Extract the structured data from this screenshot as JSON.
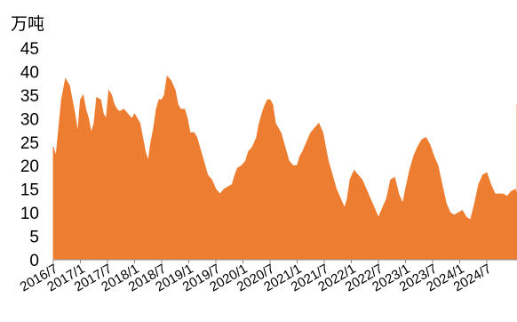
{
  "chart_data": {
    "type": "area",
    "unit_label": "万吨",
    "color": "#ED7D31",
    "ylim": [
      0,
      45
    ],
    "y_ticks": [
      0,
      5,
      10,
      15,
      20,
      25,
      30,
      35,
      40,
      45
    ],
    "x_tick_labels": [
      "2016/7",
      "2017/1",
      "2017/7",
      "2018/1",
      "2018/7",
      "2019/1",
      "2019/7",
      "2020/1",
      "2020/7",
      "2021/1",
      "2021/7",
      "2022/1",
      "2022/7",
      "2023/1",
      "2023/7",
      "2024/1",
      "2024/7"
    ],
    "x_start": "2016/7",
    "x_end": "2024/12",
    "series": [
      {
        "values": [
          [
            0.0,
            24
          ],
          [
            0.1,
            22
          ],
          [
            0.2,
            28
          ],
          [
            0.3,
            34
          ],
          [
            0.45,
            38.5
          ],
          [
            0.6,
            37
          ],
          [
            0.7,
            34
          ],
          [
            0.8,
            31
          ],
          [
            0.9,
            27
          ],
          [
            1.0,
            34
          ],
          [
            1.1,
            35
          ],
          [
            1.2,
            32
          ],
          [
            1.3,
            30
          ],
          [
            1.4,
            27
          ],
          [
            1.5,
            29
          ],
          [
            1.6,
            34.5
          ],
          [
            1.75,
            34
          ],
          [
            1.85,
            31
          ],
          [
            1.95,
            30
          ],
          [
            2.05,
            36
          ],
          [
            2.15,
            35
          ],
          [
            2.25,
            33
          ],
          [
            2.35,
            32
          ],
          [
            2.45,
            31.5
          ],
          [
            2.6,
            32
          ],
          [
            2.75,
            31
          ],
          [
            2.9,
            30
          ],
          [
            3.0,
            31
          ],
          [
            3.1,
            30
          ],
          [
            3.2,
            29
          ],
          [
            3.3,
            26
          ],
          [
            3.4,
            23
          ],
          [
            3.5,
            21
          ],
          [
            3.6,
            25
          ],
          [
            3.7,
            28
          ],
          [
            3.8,
            32
          ],
          [
            3.9,
            34
          ],
          [
            4.0,
            34
          ],
          [
            4.1,
            35
          ],
          [
            4.2,
            39
          ],
          [
            4.35,
            38
          ],
          [
            4.5,
            36
          ],
          [
            4.6,
            33
          ],
          [
            4.7,
            32
          ],
          [
            4.85,
            32
          ],
          [
            4.95,
            30
          ],
          [
            5.05,
            27
          ],
          [
            5.2,
            27
          ],
          [
            5.3,
            26
          ],
          [
            5.4,
            24
          ],
          [
            5.5,
            22
          ],
          [
            5.6,
            20
          ],
          [
            5.7,
            18
          ],
          [
            5.85,
            17
          ],
          [
            6.0,
            15
          ],
          [
            6.15,
            14
          ],
          [
            6.3,
            15
          ],
          [
            6.45,
            15.5
          ],
          [
            6.6,
            16
          ],
          [
            6.7,
            18
          ],
          [
            6.8,
            19.5
          ],
          [
            6.95,
            20
          ],
          [
            7.1,
            21
          ],
          [
            7.2,
            23
          ],
          [
            7.35,
            24
          ],
          [
            7.5,
            26
          ],
          [
            7.6,
            29
          ],
          [
            7.75,
            32
          ],
          [
            7.9,
            34
          ],
          [
            8.0,
            34
          ],
          [
            8.1,
            33
          ],
          [
            8.2,
            29
          ],
          [
            8.3,
            28
          ],
          [
            8.4,
            27
          ],
          [
            8.5,
            25
          ],
          [
            8.6,
            23
          ],
          [
            8.7,
            21
          ],
          [
            8.85,
            20
          ],
          [
            9.0,
            20
          ],
          [
            9.1,
            22
          ],
          [
            9.2,
            23
          ],
          [
            9.35,
            25
          ],
          [
            9.5,
            27
          ],
          [
            9.65,
            28
          ],
          [
            9.8,
            29
          ],
          [
            9.95,
            27
          ],
          [
            10.05,
            24
          ],
          [
            10.15,
            21
          ],
          [
            10.3,
            18
          ],
          [
            10.45,
            15
          ],
          [
            10.6,
            13
          ],
          [
            10.75,
            11
          ],
          [
            10.85,
            13
          ],
          [
            10.95,
            17
          ],
          [
            11.1,
            19
          ],
          [
            11.25,
            18
          ],
          [
            11.4,
            17
          ],
          [
            11.55,
            15
          ],
          [
            11.7,
            13
          ],
          [
            11.85,
            11
          ],
          [
            12.0,
            9
          ],
          [
            12.15,
            11
          ],
          [
            12.3,
            13
          ],
          [
            12.45,
            17
          ],
          [
            12.6,
            17.5
          ],
          [
            12.75,
            14
          ],
          [
            12.9,
            12
          ],
          [
            13.0,
            15
          ],
          [
            13.15,
            19
          ],
          [
            13.3,
            22
          ],
          [
            13.45,
            24
          ],
          [
            13.6,
            25.5
          ],
          [
            13.75,
            26
          ],
          [
            13.9,
            24.5
          ],
          [
            14.05,
            22
          ],
          [
            14.2,
            20
          ],
          [
            14.35,
            16
          ],
          [
            14.5,
            12
          ],
          [
            14.65,
            10
          ],
          [
            14.8,
            9.5
          ],
          [
            14.95,
            10
          ],
          [
            15.1,
            10.5
          ],
          [
            15.25,
            9
          ],
          [
            15.4,
            8.5
          ],
          [
            15.55,
            12
          ],
          [
            15.7,
            16
          ],
          [
            15.85,
            18
          ],
          [
            16.0,
            18.5
          ],
          [
            16.15,
            16
          ],
          [
            16.3,
            14
          ],
          [
            16.45,
            14
          ],
          [
            16.6,
            14
          ],
          [
            16.75,
            13.5
          ],
          [
            16.9,
            14.5
          ],
          [
            17.05,
            15
          ],
          [
            17.2,
            14
          ],
          [
            17.35,
            11
          ],
          [
            17.5,
            9.5
          ],
          [
            17.65,
            9.5
          ],
          [
            17.8,
            9
          ],
          [
            17.95,
            8.5
          ],
          [
            18.1,
            8
          ],
          [
            18.25,
            7.5
          ],
          [
            18.4,
            8
          ],
          [
            18.55,
            7
          ],
          [
            18.7,
            8.5
          ],
          [
            18.85,
            10
          ],
          [
            19.0,
            10.5
          ],
          [
            19.15,
            9
          ],
          [
            19.3,
            7.5
          ],
          [
            19.45,
            9
          ],
          [
            19.6,
            12
          ],
          [
            19.75,
            16
          ],
          [
            19.9,
            18
          ],
          [
            20.05,
            19
          ],
          [
            20.2,
            19.5
          ],
          [
            20.35,
            18.5
          ],
          [
            20.5,
            18
          ],
          [
            20.65,
            17
          ],
          [
            20.8,
            15
          ],
          [
            20.95,
            14
          ],
          [
            21.1,
            13.5
          ],
          [
            21.25,
            13
          ],
          [
            21.4,
            13.5
          ],
          [
            21.55,
            13
          ],
          [
            21.7,
            14
          ],
          [
            21.85,
            18
          ],
          [
            22.0,
            22
          ],
          [
            22.15,
            28
          ],
          [
            22.3,
            32
          ],
          [
            22.45,
            33
          ],
          [
            22.6,
            32
          ],
          [
            22.75,
            31
          ],
          [
            22.9,
            30
          ]
        ]
      }
    ]
  }
}
